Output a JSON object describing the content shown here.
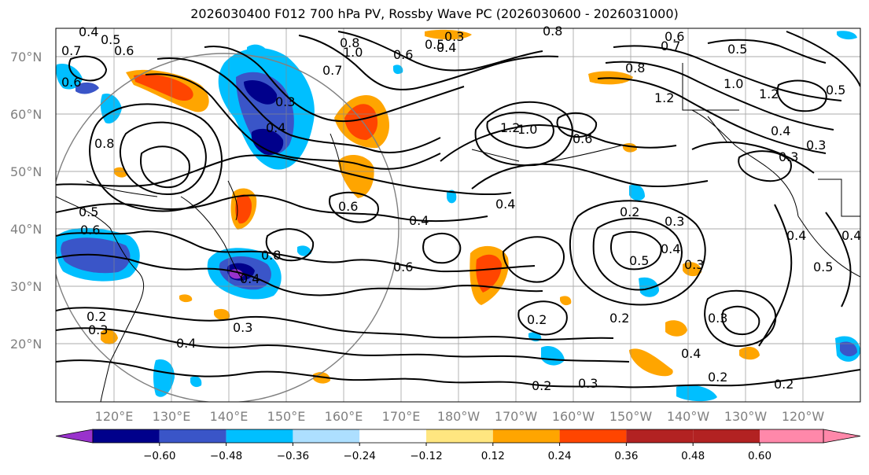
{
  "title": "2026030400 F012 700 hPa PV, Rossby Wave PC (2026030600 - 2026031000)",
  "lat_labels": [
    "70°N",
    "60°N",
    "50°N",
    "40°N",
    "30°N",
    "20°N"
  ],
  "lon_labels": [
    "120°E",
    "130°E",
    "140°E",
    "150°E",
    "160°E",
    "170°E",
    "180°W",
    "170°W",
    "160°W",
    "150°W",
    "140°W",
    "130°W",
    "120°W"
  ],
  "colorbar": {
    "ticks": [
      "−0.60",
      "−0.48",
      "−0.36",
      "−0.24",
      "−0.12",
      "0.12",
      "0.24",
      "0.36",
      "0.48",
      "0.60"
    ],
    "colors": [
      "#9932cc",
      "#00008b",
      "#3a55c8",
      "#00bfff",
      "#addfff",
      "#ffffff",
      "#ffe680",
      "#ffa500",
      "#ff4500",
      "#b22222",
      "#ff88aa"
    ]
  },
  "contour_labels": [
    "0.4",
    "0.5",
    "0.6",
    "0.7",
    "0.6",
    "0.8",
    "1.0",
    "0.7",
    "0.6",
    "0.5",
    "0.3",
    "0.4",
    "0.3",
    "0.4",
    "0.8",
    "1.2",
    "1.0",
    "0.6",
    "0.8",
    "1.2",
    "0.7",
    "0.5",
    "1.2",
    "1.0",
    "0.6",
    "0.8",
    "0.6",
    "0.4",
    "0.2",
    "0.3",
    "0.4",
    "0.5",
    "0.3",
    "0.4",
    "0.6",
    "0.5",
    "0.6",
    "0.4",
    "0.8",
    "0.4",
    "0.3",
    "0.4",
    "0.2",
    "0.3",
    "0.2",
    "0.4",
    "0.2",
    "0.3",
    "0.2",
    "0.4",
    "0.5",
    "0.4",
    "0.3",
    "0.5",
    "0.2",
    "0.3",
    "0.3",
    "0.2"
  ]
}
